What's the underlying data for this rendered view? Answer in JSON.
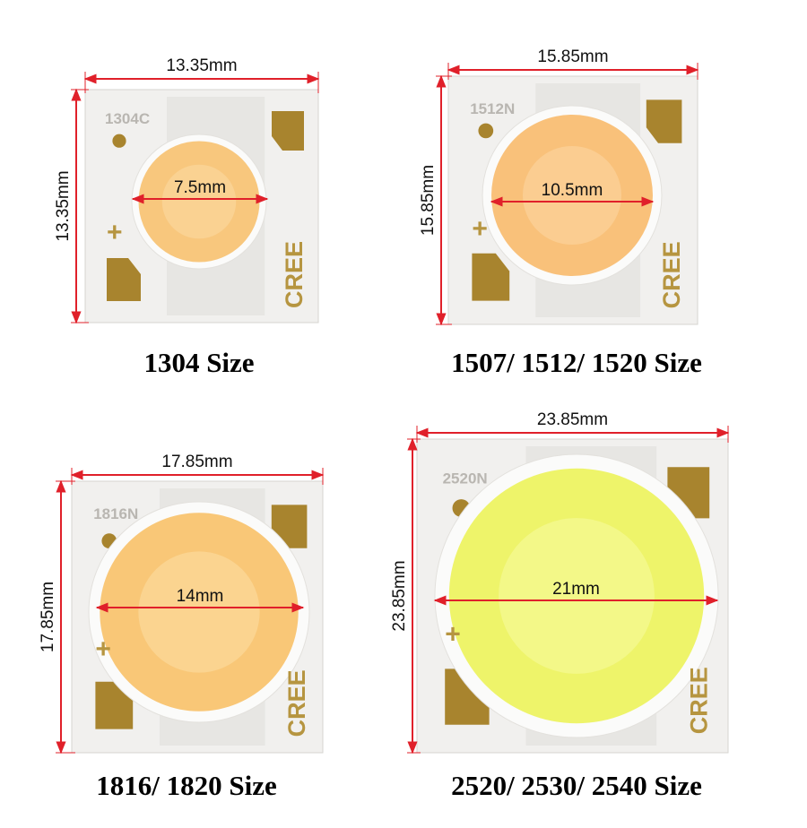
{
  "panels": [
    {
      "caption": "1304 Size",
      "width": "13.35mm",
      "height": "13.35mm",
      "diameter": "7.5mm",
      "marking": "1304C",
      "brand": "CREE",
      "polarity": "+"
    },
    {
      "caption": "1507/ 1512/ 1520 Size",
      "width": "15.85mm",
      "height": "15.85mm",
      "diameter": "10.5mm",
      "marking": "1512N",
      "brand": "CREE",
      "polarity": "+"
    },
    {
      "caption": "1816/ 1820 Size",
      "width": "17.85mm",
      "height": "17.85mm",
      "diameter": "14mm",
      "marking": "1816N",
      "brand": "CREE",
      "polarity": "+"
    },
    {
      "caption": "2520/ 2530/ 2540 Size",
      "width": "23.85mm",
      "height": "23.85mm",
      "diameter": "21mm",
      "marking": "2520N",
      "brand": "CREE",
      "polarity": "+"
    }
  ]
}
